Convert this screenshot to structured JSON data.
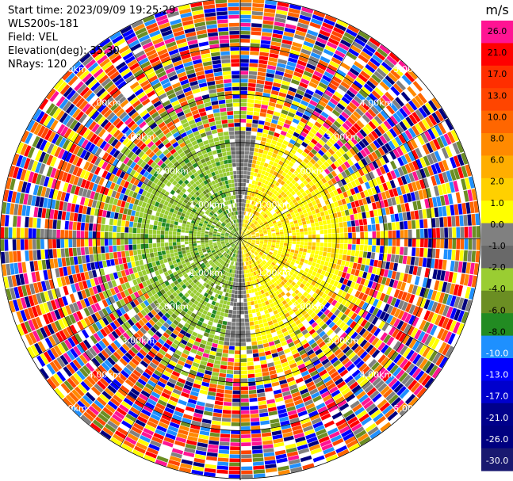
{
  "header": {
    "start_time": "Start time: 2023/09/09 19:25:29",
    "instrument": "WLS200s-181",
    "field": "Field: VEL",
    "elevation": "Elevation(deg): 35.30",
    "nrays": "NRays: 120"
  },
  "chart_data": {
    "type": "heatmap",
    "projection": "polar-ppi",
    "field": "VEL",
    "units": "m/s",
    "nrays": 120,
    "elevation_deg": 35.3,
    "max_range_km": 5.0,
    "range_rings_km": [
      1.0,
      2.0,
      3.0,
      4.0,
      5.0
    ],
    "ring_labels": [
      "1.00km",
      "2.00km",
      "3.00km",
      "4.00km",
      "5.00km"
    ],
    "colorbar": {
      "title": "m/s",
      "ticks": [
        "26.0",
        "21.0",
        "17.0",
        "13.0",
        "10.0",
        "8.0",
        "6.0",
        "2.0",
        "1.0",
        "0.0",
        "-1.0",
        "-2.0",
        "-4.0",
        "-6.0",
        "-8.0",
        "-10.0",
        "-13.0",
        "-17.0",
        "-21.0",
        "-26.0",
        "-30.0"
      ],
      "colors": [
        "#ff1493",
        "#ff0000",
        "#ff2e00",
        "#ff4500",
        "#ff6600",
        "#ff8a00",
        "#ffae00",
        "#ffd000",
        "#ffff00",
        "#808080",
        "#696969",
        "#9acd32",
        "#6b8e23",
        "#228b22",
        "#1e90ff",
        "#0000ff",
        "#0000cd",
        "#00008b",
        "#000080",
        "#191970"
      ]
    }
  }
}
